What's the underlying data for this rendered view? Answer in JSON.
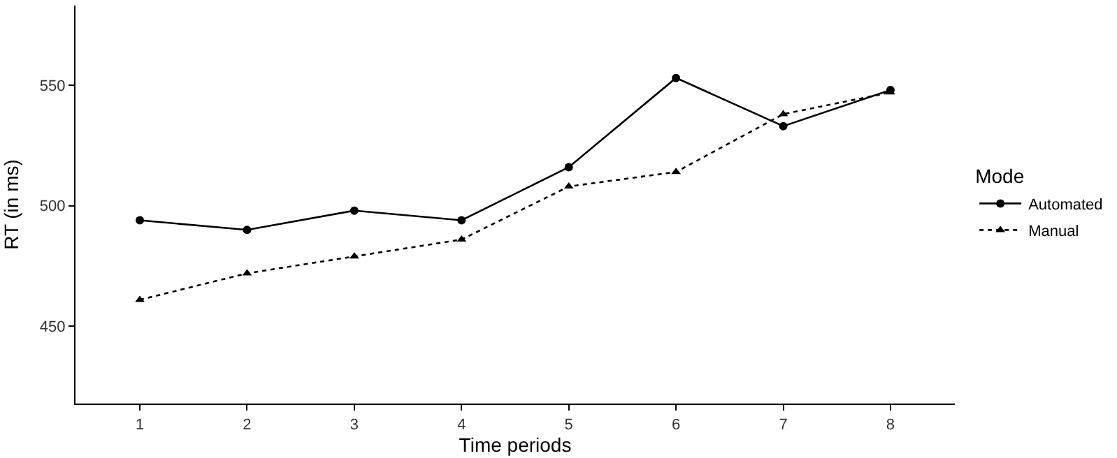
{
  "chart_data": {
    "type": "line",
    "xlabel": "Time periods",
    "ylabel": "RT (in ms)",
    "legend_title": "Mode",
    "legend": "right",
    "grid": false,
    "x": [
      1,
      2,
      3,
      4,
      5,
      6,
      7,
      8
    ],
    "xlim": [
      0.4,
      8.6
    ],
    "xticks": [
      1,
      2,
      3,
      4,
      5,
      6,
      7,
      8
    ],
    "ylim": [
      418,
      583
    ],
    "yticks": [
      450,
      500,
      550
    ],
    "series": [
      {
        "name": "Automated",
        "color": "#000000",
        "marker": "circle",
        "line_style": "solid",
        "values": [
          494,
          490,
          498,
          494,
          516,
          553,
          533,
          548
        ]
      },
      {
        "name": "Manual",
        "color": "#000000",
        "marker": "triangle",
        "line_style": "dotted",
        "values": [
          461,
          472,
          479,
          486,
          508,
          514,
          538,
          547
        ]
      }
    ]
  }
}
